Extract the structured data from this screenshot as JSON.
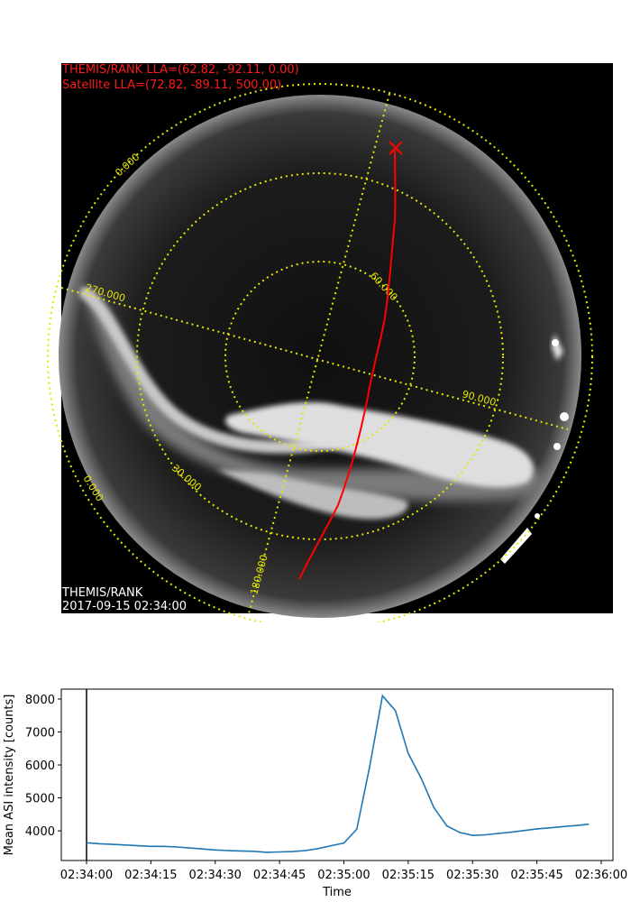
{
  "image_panel": {
    "imager_label": "THEMIS/RANK LLA=(62.82, -92.11, 0.00)",
    "satellite_label": "Satellite LLA=(72.82, -89.11, 500.00)",
    "station": "THEMIS/RANK",
    "timestamp": "2017-09-15 02:34:00",
    "grid_labels": [
      "0.000",
      "0.000",
      "30.000",
      "60.000",
      "90.000",
      "180.000",
      "270.000"
    ],
    "colors": {
      "grid": "#e6e600",
      "track": "#ff0000",
      "label_red": "#ff1a1a"
    }
  },
  "chart_data": {
    "type": "line",
    "xlabel": "Time",
    "ylabel": "Mean ASI intensity [counts]",
    "x_ticks": [
      "02:34:00",
      "02:34:15",
      "02:34:30",
      "02:34:45",
      "02:35:00",
      "02:35:15",
      "02:35:30",
      "02:35:45",
      "02:36:00"
    ],
    "y_ticks": [
      "4000",
      "5000",
      "6000",
      "7000",
      "8000"
    ],
    "xlim": [
      0,
      120
    ],
    "ylim": [
      3100,
      8300
    ],
    "vline_x": 0,
    "line_color": "#1f77b4",
    "series": [
      {
        "x": [
          0,
          3,
          6,
          9,
          12,
          15,
          18,
          21,
          24,
          27,
          30,
          33,
          36,
          39,
          42,
          45,
          48,
          51,
          54,
          57,
          60,
          63,
          66,
          69,
          72,
          75,
          78,
          81,
          84,
          87,
          90,
          93,
          96,
          99,
          102,
          105,
          108,
          111,
          114,
          117
        ],
        "y": [
          3640,
          3610,
          3590,
          3570,
          3550,
          3530,
          3530,
          3510,
          3480,
          3450,
          3420,
          3400,
          3390,
          3380,
          3350,
          3360,
          3370,
          3400,
          3460,
          3550,
          3630,
          4050,
          5950,
          8100,
          7650,
          6350,
          5600,
          4700,
          4150,
          3950,
          3860,
          3880,
          3920,
          3960,
          4010,
          4060,
          4090,
          4130,
          4160,
          4200
        ]
      }
    ]
  }
}
